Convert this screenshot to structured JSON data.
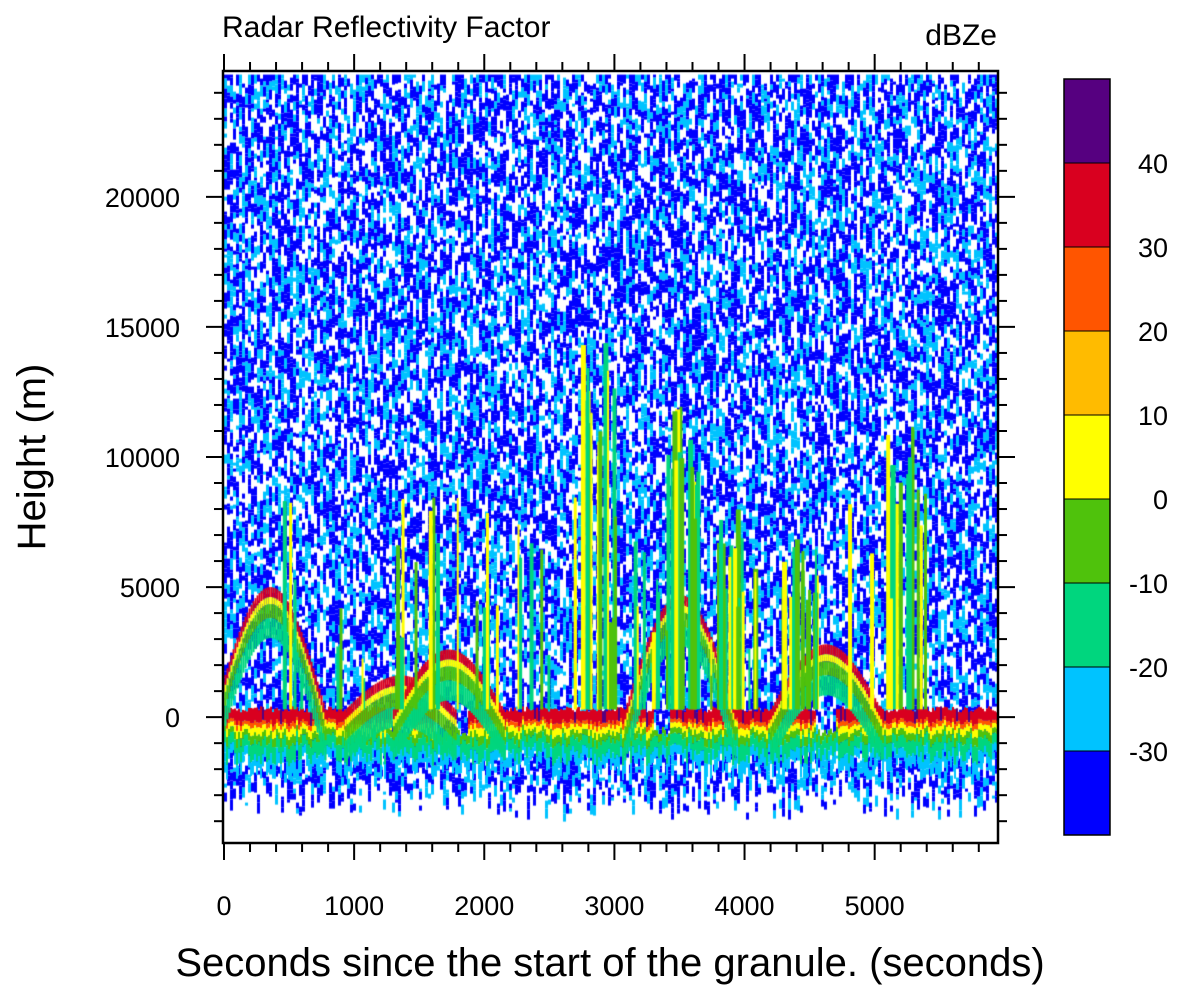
{
  "chart_data": {
    "type": "heatmap",
    "title": "Radar Reflectivity Factor",
    "units": "dBZe",
    "xlabel": "Seconds since the start of the granule. (seconds)",
    "ylabel": "Height (m)",
    "xlim": [
      0,
      5940
    ],
    "ylim": [
      -4800,
      24800
    ],
    "x_ticks": [
      0,
      1000,
      2000,
      3000,
      4000,
      5000
    ],
    "x_tick_labels": [
      "0",
      "1000",
      "2000",
      "3000",
      "4000",
      "5000"
    ],
    "y_ticks": [
      0,
      5000,
      10000,
      15000,
      20000
    ],
    "y_tick_labels": [
      "0",
      "5000",
      "10000",
      "15000",
      "20000"
    ],
    "colorbar": {
      "bins": [
        {
          "color": "#0000ff"
        },
        {
          "color": "#00c3ff"
        },
        {
          "color": "#00d67e"
        },
        {
          "color": "#4fc20c"
        },
        {
          "color": "#ffff00"
        },
        {
          "color": "#ffbb00"
        },
        {
          "color": "#ff5500"
        },
        {
          "color": "#d9001f"
        },
        {
          "color": "#560080"
        }
      ],
      "labels": [
        "-30",
        "-20",
        "-10",
        "0",
        "10",
        "20",
        "30",
        "40"
      ]
    },
    "features": {
      "noise_top_m": 24700,
      "noise_bottom_m": -3000,
      "surface_band_m": [
        -1500,
        300
      ],
      "cloud_humps": [
        {
          "x": 350,
          "top_m": 5000
        },
        {
          "x": 1350,
          "top_m": 1600
        },
        {
          "x": 1720,
          "top_m": 2600
        },
        {
          "x": 3500,
          "top_m": 4700
        },
        {
          "x": 4620,
          "top_m": 2800
        }
      ],
      "convective_towers": [
        {
          "x": 2850,
          "top_m": 15000
        },
        {
          "x": 3520,
          "top_m": 12000
        },
        {
          "x": 3950,
          "top_m": 8000
        },
        {
          "x": 4400,
          "top_m": 7000
        },
        {
          "x": 5240,
          "top_m": 11500
        }
      ]
    }
  }
}
